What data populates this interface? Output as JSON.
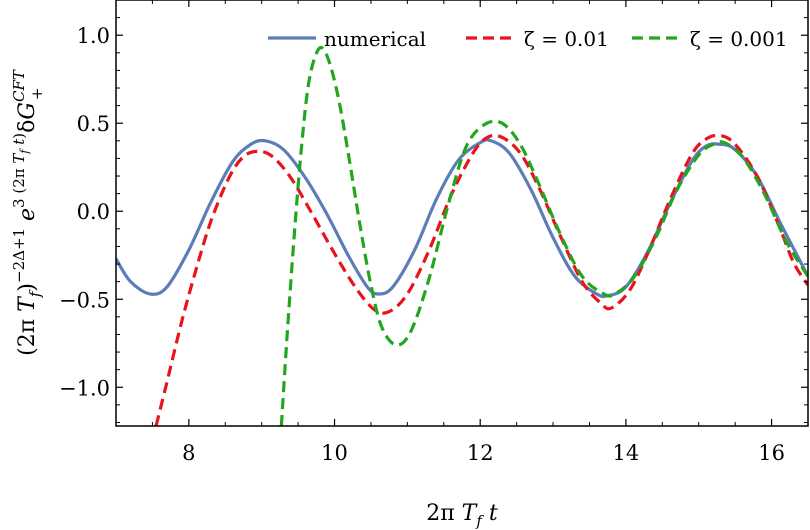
{
  "chart_data": {
    "type": "line",
    "title": "",
    "xlabel": "2π T_f t",
    "ylabel": "(2π T_f)^{−2Δ+1} e^{3(2π T_f t)} δG_+^{CFT}",
    "xlim": [
      7.0,
      16.5
    ],
    "ylim": [
      -1.22,
      1.2
    ],
    "xticks": [
      8,
      10,
      12,
      14,
      16
    ],
    "xtick_labels": [
      "8",
      "10",
      "12",
      "14",
      "16"
    ],
    "yticks": [
      1.0,
      0.5,
      0.0,
      -0.5,
      -1.0
    ],
    "ytick_labels": [
      "1.0",
      "0.5",
      "0.0",
      "−0.5",
      "−1.0"
    ],
    "grid": false,
    "legend_position": "top",
    "series": [
      {
        "name": "numerical",
        "color": "#5b7db8",
        "style": "solid",
        "x": [
          7.0,
          7.2,
          7.47,
          7.7,
          8.0,
          8.3,
          8.6,
          8.85,
          9.05,
          9.3,
          9.6,
          9.9,
          10.2,
          10.45,
          10.6,
          10.8,
          11.1,
          11.4,
          11.7,
          12.0,
          12.15,
          12.4,
          12.7,
          13.0,
          13.3,
          13.6,
          13.75,
          14.0,
          14.3,
          14.6,
          14.9,
          15.1,
          15.3,
          15.5,
          15.8,
          16.1,
          16.3,
          16.5
        ],
        "y": [
          -0.27,
          -0.4,
          -0.47,
          -0.43,
          -0.22,
          0.05,
          0.28,
          0.38,
          0.4,
          0.35,
          0.19,
          -0.02,
          -0.26,
          -0.43,
          -0.47,
          -0.43,
          -0.22,
          0.07,
          0.29,
          0.39,
          0.4,
          0.33,
          0.12,
          -0.15,
          -0.37,
          -0.47,
          -0.48,
          -0.43,
          -0.23,
          0.04,
          0.28,
          0.37,
          0.38,
          0.35,
          0.2,
          -0.05,
          -0.21,
          -0.37
        ]
      },
      {
        "name": "ζ = 0.01",
        "color": "#e8141c",
        "style": "dashed",
        "x": [
          7.55,
          7.7,
          7.9,
          8.1,
          8.3,
          8.55,
          8.75,
          8.95,
          9.15,
          9.4,
          9.7,
          10.0,
          10.3,
          10.55,
          10.75,
          11.0,
          11.3,
          11.6,
          11.9,
          12.1,
          12.3,
          12.55,
          12.8,
          13.1,
          13.4,
          13.65,
          13.8,
          14.05,
          14.3,
          14.6,
          14.9,
          15.1,
          15.3,
          15.5,
          15.8,
          16.1,
          16.3,
          16.5
        ],
        "y": [
          -1.22,
          -0.97,
          -0.63,
          -0.33,
          -0.06,
          0.19,
          0.31,
          0.34,
          0.31,
          0.19,
          -0.02,
          -0.24,
          -0.44,
          -0.56,
          -0.57,
          -0.47,
          -0.22,
          0.09,
          0.33,
          0.42,
          0.42,
          0.33,
          0.14,
          -0.14,
          -0.4,
          -0.52,
          -0.55,
          -0.45,
          -0.24,
          0.06,
          0.32,
          0.41,
          0.43,
          0.38,
          0.2,
          -0.08,
          -0.29,
          -0.42
        ]
      },
      {
        "name": "ζ = 0.001",
        "color": "#22a61e",
        "style": "dashed",
        "x": [
          9.27,
          9.35,
          9.45,
          9.55,
          9.65,
          9.78,
          9.9,
          10.05,
          10.2,
          10.35,
          10.5,
          10.65,
          10.85,
          11.05,
          11.3,
          11.55,
          11.8,
          12.05,
          12.3,
          12.55,
          12.8,
          13.1,
          13.4,
          13.7,
          13.85,
          14.1,
          14.4,
          14.7,
          15.0,
          15.2,
          15.35,
          15.6,
          15.9,
          16.2,
          16.5
        ],
        "y": [
          -1.22,
          -0.7,
          -0.12,
          0.38,
          0.74,
          0.92,
          0.88,
          0.65,
          0.3,
          -0.08,
          -0.42,
          -0.66,
          -0.76,
          -0.68,
          -0.38,
          0.02,
          0.36,
          0.49,
          0.5,
          0.38,
          0.16,
          -0.13,
          -0.37,
          -0.47,
          -0.47,
          -0.38,
          -0.16,
          0.12,
          0.32,
          0.38,
          0.39,
          0.31,
          0.1,
          -0.17,
          -0.37
        ]
      }
    ]
  }
}
